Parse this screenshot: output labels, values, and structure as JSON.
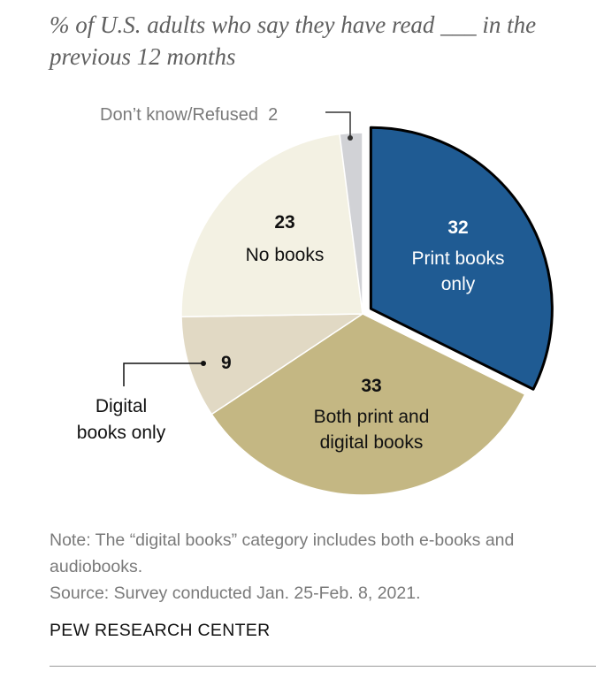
{
  "title": "% of U.S. adults who say they have read ___ in the previous 12 months",
  "chart_data": {
    "type": "pie",
    "slices": [
      {
        "label": "Print books only",
        "value": 32,
        "color": "#1f5b93"
      },
      {
        "label": "Both print and digital books",
        "value": 33,
        "color": "#c4b783"
      },
      {
        "label": "Digital books only",
        "value": 9,
        "color": "#e1d9c4"
      },
      {
        "label": "No books",
        "value": 23,
        "color": "#f3f1e3"
      },
      {
        "label": "Don’t know/Refused",
        "value": 2,
        "color": "#d1d2d6"
      }
    ],
    "exploded_slice": "Print books only"
  },
  "labels": {
    "print_value": "32",
    "print_label": [
      "Print books",
      "only"
    ],
    "both_value": "33",
    "both_label": [
      "Both print and",
      "digital books"
    ],
    "digital_value": "9",
    "digital_label": [
      "Digital",
      "books only"
    ],
    "none_value": "23",
    "none_label": [
      "No books"
    ],
    "dk_text": "Don’t know/Refused  2"
  },
  "note": "Note: The “digital books” category includes both e-books and audiobooks.",
  "source": "Source: Survey conducted Jan. 25-Feb. 8, 2021.",
  "credit": "PEW RESEARCH CENTER"
}
